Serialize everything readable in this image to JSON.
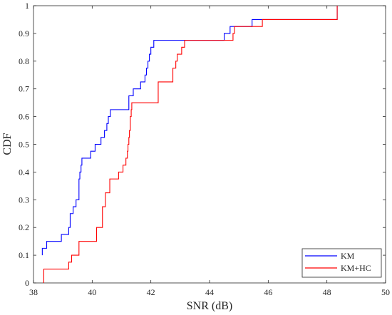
{
  "chart_data": {
    "type": "line",
    "title": "",
    "xlabel": "SNR (dB)",
    "ylabel": "CDF",
    "xlim": [
      38,
      50
    ],
    "ylim": [
      0,
      1
    ],
    "xticks": [
      38,
      40,
      42,
      44,
      46,
      48,
      50
    ],
    "yticks": [
      0,
      0.1,
      0.2,
      0.3,
      0.4,
      0.5,
      0.6,
      0.7,
      0.8,
      0.9,
      1
    ],
    "grid": false,
    "legend_position": "bottom-right",
    "step": true,
    "series": [
      {
        "name": "KM",
        "color": "#0000ff",
        "points": [
          [
            38.3,
            0.1
          ],
          [
            38.3,
            0.125
          ],
          [
            38.45,
            0.15
          ],
          [
            38.95,
            0.175
          ],
          [
            39.2,
            0.2
          ],
          [
            39.25,
            0.25
          ],
          [
            39.35,
            0.275
          ],
          [
            39.45,
            0.3
          ],
          [
            39.55,
            0.375
          ],
          [
            39.58,
            0.4
          ],
          [
            39.62,
            0.425
          ],
          [
            39.65,
            0.45
          ],
          [
            39.95,
            0.475
          ],
          [
            40.1,
            0.5
          ],
          [
            40.3,
            0.525
          ],
          [
            40.42,
            0.55
          ],
          [
            40.5,
            0.575
          ],
          [
            40.55,
            0.6
          ],
          [
            40.62,
            0.625
          ],
          [
            41.25,
            0.675
          ],
          [
            41.4,
            0.7
          ],
          [
            41.65,
            0.725
          ],
          [
            41.8,
            0.75
          ],
          [
            41.85,
            0.775
          ],
          [
            41.9,
            0.8
          ],
          [
            41.95,
            0.825
          ],
          [
            42.0,
            0.85
          ],
          [
            42.1,
            0.875
          ],
          [
            44.5,
            0.9
          ],
          [
            44.7,
            0.925
          ],
          [
            44.9,
            0.925
          ],
          [
            45.45,
            0.95
          ],
          [
            48.35,
            0.95
          ],
          [
            48.35,
            1.0
          ]
        ]
      },
      {
        "name": "KM+HC",
        "color": "#ff0000",
        "points": [
          [
            38.35,
            0.0
          ],
          [
            38.35,
            0.05
          ],
          [
            39.2,
            0.075
          ],
          [
            39.3,
            0.1
          ],
          [
            39.55,
            0.15
          ],
          [
            40.15,
            0.2
          ],
          [
            40.35,
            0.275
          ],
          [
            40.45,
            0.325
          ],
          [
            40.6,
            0.375
          ],
          [
            40.9,
            0.4
          ],
          [
            41.05,
            0.425
          ],
          [
            41.15,
            0.45
          ],
          [
            41.2,
            0.475
          ],
          [
            41.22,
            0.5
          ],
          [
            41.25,
            0.525
          ],
          [
            41.27,
            0.55
          ],
          [
            41.3,
            0.6
          ],
          [
            41.33,
            0.625
          ],
          [
            41.35,
            0.65
          ],
          [
            42.25,
            0.725
          ],
          [
            42.75,
            0.775
          ],
          [
            42.85,
            0.8
          ],
          [
            42.9,
            0.825
          ],
          [
            43.05,
            0.85
          ],
          [
            43.15,
            0.875
          ],
          [
            44.8,
            0.9
          ],
          [
            44.85,
            0.925
          ],
          [
            45.8,
            0.95
          ],
          [
            48.35,
            0.95
          ],
          [
            48.35,
            1.0
          ]
        ]
      }
    ]
  }
}
